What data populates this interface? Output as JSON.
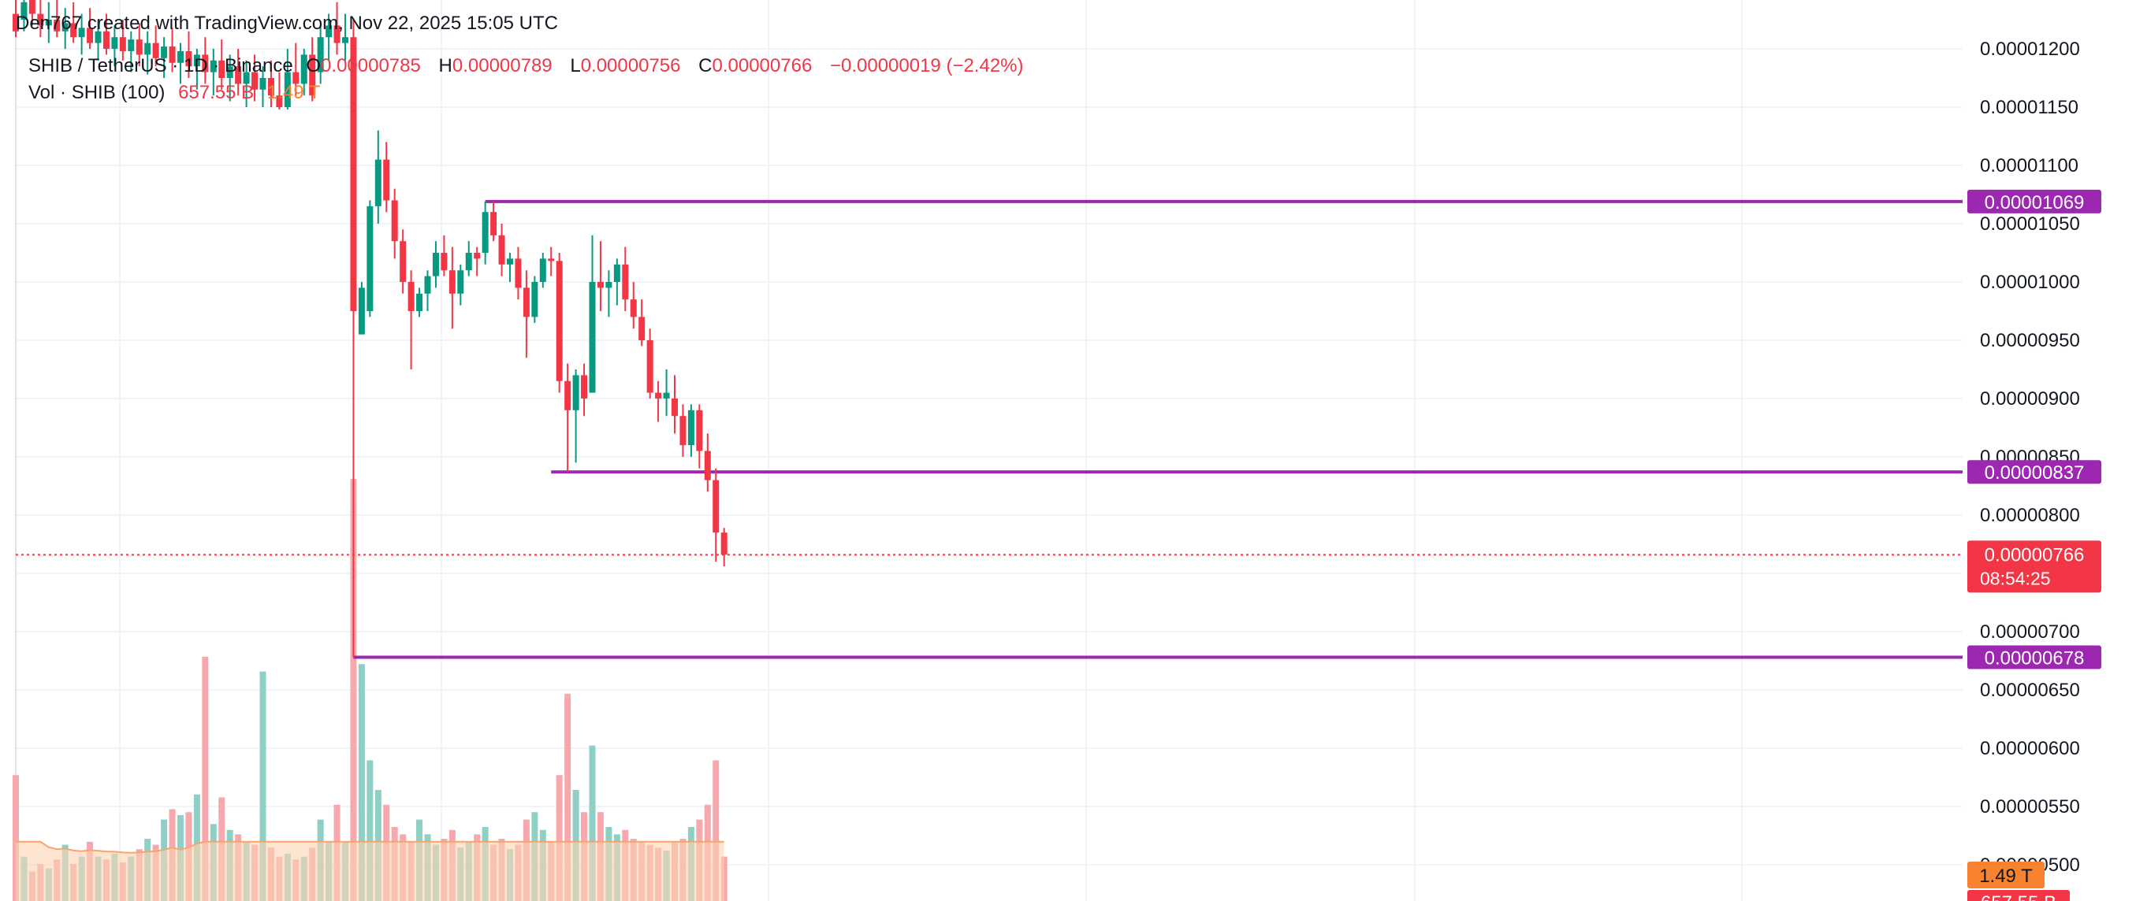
{
  "header": {
    "credit": "Den767 created with TradingView.com, Nov 22, 2025 15:05 UTC"
  },
  "legend": {
    "symbol": "SHIB / TetherUS · 1D · Binance",
    "open_label": "O",
    "open_value": "0.00000785",
    "high_label": "H",
    "high_value": "0.00000789",
    "low_label": "L",
    "low_value": "0.00000756",
    "close_label": "C",
    "close_value": "0.00000766",
    "change": "−0.00000019 (−2.42%)",
    "volume_title": "Vol · SHIB (100)",
    "volume_value": "657.55 B",
    "volume_ma_value": "1.49 T"
  },
  "colors": {
    "up": "#089981",
    "down": "#f23645",
    "level_line": "#9c27b0",
    "volume_up": "#8fcfc5",
    "volume_down": "#f6a8ad",
    "volume_ma_fill": "#fcd3b3",
    "volume_ma_line": "#f7a56b",
    "grid": "#f0f3fa"
  },
  "chart_data": {
    "type": "candlestick",
    "symbol": "SHIB / TetherUS",
    "interval": "1D",
    "exchange": "Binance",
    "y_axis_ticks": [
      "0.00001200",
      "0.00001150",
      "0.00001100",
      "0.00001050",
      "0.00001000",
      "0.00000950",
      "0.00000900",
      "0.00000850",
      "0.00000800",
      "0.00000700",
      "0.00000650",
      "0.00000600",
      "0.00000550",
      "0.00000500"
    ],
    "ylim": [
      4.9e-06,
      1.21e-05
    ],
    "grid": true,
    "horizontal_levels": [
      "0.00001069",
      "0.00000837",
      "0.00000678"
    ],
    "last_price": "0.00000766",
    "countdown": "08:54:25",
    "volume_badges": [
      "1.49 T",
      "657.55 B"
    ],
    "candles": [
      {
        "o": 1.23e-05,
        "h": 1.27e-05,
        "l": 1.21e-05,
        "c": 1.215e-05,
        "v": 85
      },
      {
        "o": 1.225e-05,
        "h": 1.26e-05,
        "l": 1.215e-05,
        "c": 1.24e-05,
        "v": 30
      },
      {
        "o": 1.245e-05,
        "h": 1.27e-05,
        "l": 1.22e-05,
        "c": 1.23e-05,
        "v": 20
      },
      {
        "o": 1.23e-05,
        "h": 1.25e-05,
        "l": 1.21e-05,
        "c": 1.22e-05,
        "v": 25
      },
      {
        "o": 1.22e-05,
        "h": 1.24e-05,
        "l": 1.205e-05,
        "c": 1.225e-05,
        "v": 22
      },
      {
        "o": 1.225e-05,
        "h": 1.245e-05,
        "l": 1.21e-05,
        "c": 1.215e-05,
        "v": 28
      },
      {
        "o": 1.215e-05,
        "h": 1.235e-05,
        "l": 1.2e-05,
        "c": 1.222e-05,
        "v": 38
      },
      {
        "o": 1.222e-05,
        "h": 1.24e-05,
        "l": 1.205e-05,
        "c": 1.21e-05,
        "v": 25
      },
      {
        "o": 1.21e-05,
        "h": 1.23e-05,
        "l": 1.195e-05,
        "c": 1.218e-05,
        "v": 30
      },
      {
        "o": 1.218e-05,
        "h": 1.235e-05,
        "l": 1.2e-05,
        "c": 1.205e-05,
        "v": 40
      },
      {
        "o": 1.205e-05,
        "h": 1.225e-05,
        "l": 1.19e-05,
        "c": 1.215e-05,
        "v": 30
      },
      {
        "o": 1.215e-05,
        "h": 1.23e-05,
        "l": 1.195e-05,
        "c": 1.2e-05,
        "v": 28
      },
      {
        "o": 1.2e-05,
        "h": 1.22e-05,
        "l": 1.185e-05,
        "c": 1.21e-05,
        "v": 32
      },
      {
        "o": 1.21e-05,
        "h": 1.225e-05,
        "l": 1.19e-05,
        "c": 1.198e-05,
        "v": 26
      },
      {
        "o": 1.198e-05,
        "h": 1.215e-05,
        "l": 1.18e-05,
        "c": 1.208e-05,
        "v": 30
      },
      {
        "o": 1.208e-05,
        "h": 1.222e-05,
        "l": 1.185e-05,
        "c": 1.195e-05,
        "v": 35
      },
      {
        "o": 1.195e-05,
        "h": 1.215e-05,
        "l": 1.178e-05,
        "c": 1.205e-05,
        "v": 42
      },
      {
        "o": 1.205e-05,
        "h": 1.22e-05,
        "l": 1.185e-05,
        "c": 1.192e-05,
        "v": 38
      },
      {
        "o": 1.192e-05,
        "h": 1.21e-05,
        "l": 1.175e-05,
        "c": 1.202e-05,
        "v": 55
      },
      {
        "o": 1.202e-05,
        "h": 1.218e-05,
        "l": 1.18e-05,
        "c": 1.188e-05,
        "v": 62
      },
      {
        "o": 1.188e-05,
        "h": 1.205e-05,
        "l": 1.17e-05,
        "c": 1.198e-05,
        "v": 58
      },
      {
        "o": 1.198e-05,
        "h": 1.215e-05,
        "l": 1.175e-05,
        "c": 1.185e-05,
        "v": 60
      },
      {
        "o": 1.185e-05,
        "h": 1.2e-05,
        "l": 1.165e-05,
        "c": 1.195e-05,
        "v": 72
      },
      {
        "o": 1.195e-05,
        "h": 1.21e-05,
        "l": 1.17e-05,
        "c": 1.18e-05,
        "v": 165
      },
      {
        "o": 1.18e-05,
        "h": 1.2e-05,
        "l": 1.16e-05,
        "c": 1.19e-05,
        "v": 52
      },
      {
        "o": 1.19e-05,
        "h": 1.208e-05,
        "l": 1.165e-05,
        "c": 1.175e-05,
        "v": 70
      },
      {
        "o": 1.175e-05,
        "h": 1.195e-05,
        "l": 1.155e-05,
        "c": 1.185e-05,
        "v": 48
      },
      {
        "o": 1.185e-05,
        "h": 1.2e-05,
        "l": 1.16e-05,
        "c": 1.17e-05,
        "v": 45
      },
      {
        "o": 1.17e-05,
        "h": 1.19e-05,
        "l": 1.15e-05,
        "c": 1.18e-05,
        "v": 40
      },
      {
        "o": 1.18e-05,
        "h": 1.195e-05,
        "l": 1.155e-05,
        "c": 1.165e-05,
        "v": 38
      },
      {
        "o": 1.165e-05,
        "h": 1.185e-05,
        "l": 1.15e-05,
        "c": 1.175e-05,
        "v": 155
      },
      {
        "o": 1.175e-05,
        "h": 1.19e-05,
        "l": 1.15e-05,
        "c": 1.16e-05,
        "v": 36
      },
      {
        "o": 1.16e-05,
        "h": 1.18e-05,
        "l": 1.148e-05,
        "c": 1.15e-05,
        "v": 30
      },
      {
        "o": 1.15e-05,
        "h": 1.2e-05,
        "l": 1.148e-05,
        "c": 1.18e-05,
        "v": 32
      },
      {
        "o": 1.18e-05,
        "h": 1.205e-05,
        "l": 1.16e-05,
        "c": 1.17e-05,
        "v": 28
      },
      {
        "o": 1.17e-05,
        "h": 1.2e-05,
        "l": 1.16e-05,
        "c": 1.195e-05,
        "v": 30
      },
      {
        "o": 1.195e-05,
        "h": 1.21e-05,
        "l": 1.155e-05,
        "c": 1.16e-05,
        "v": 36
      },
      {
        "o": 1.18e-05,
        "h": 1.22e-05,
        "l": 1.17e-05,
        "c": 1.21e-05,
        "v": 55
      },
      {
        "o": 1.21e-05,
        "h": 1.23e-05,
        "l": 1.19e-05,
        "c": 1.22e-05,
        "v": 40
      },
      {
        "o": 1.22e-05,
        "h": 1.24e-05,
        "l": 1.195e-05,
        "c": 1.205e-05,
        "v": 65
      },
      {
        "o": 1.205e-05,
        "h": 1.23e-05,
        "l": 1.19e-05,
        "c": 1.21e-05,
        "v": 40
      },
      {
        "o": 1.21e-05,
        "h": 1.225e-05,
        "l": 6.78e-06,
        "c": 9.75e-06,
        "v": 285
      },
      {
        "o": 9.55e-06,
        "h": 1e-05,
        "l": 9.55e-06,
        "c": 9.95e-06,
        "v": 160
      },
      {
        "o": 9.75e-06,
        "h": 1.07e-05,
        "l": 9.7e-06,
        "c": 1.065e-05,
        "v": 95
      },
      {
        "o": 1.065e-05,
        "h": 1.13e-05,
        "l": 1.05e-05,
        "c": 1.105e-05,
        "v": 75
      },
      {
        "o": 1.105e-05,
        "h": 1.12e-05,
        "l": 1.06e-05,
        "c": 1.07e-05,
        "v": 65
      },
      {
        "o": 1.07e-05,
        "h": 1.08e-05,
        "l": 1.02e-05,
        "c": 1.035e-05,
        "v": 50
      },
      {
        "o": 1.035e-05,
        "h": 1.045e-05,
        "l": 9.9e-06,
        "c": 1e-05,
        "v": 45
      },
      {
        "o": 1e-05,
        "h": 1.01e-05,
        "l": 9.25e-06,
        "c": 9.75e-06,
        "v": 40
      },
      {
        "o": 9.75e-06,
        "h": 9.95e-06,
        "l": 9.7e-06,
        "c": 9.9e-06,
        "v": 55
      },
      {
        "o": 9.9e-06,
        "h": 1.01e-05,
        "l": 9.75e-06,
        "c": 1.005e-05,
        "v": 45
      },
      {
        "o": 1.005e-05,
        "h": 1.035e-05,
        "l": 9.95e-06,
        "c": 1.025e-05,
        "v": 38
      },
      {
        "o": 1.025e-05,
        "h": 1.04e-05,
        "l": 1.005e-05,
        "c": 1.01e-05,
        "v": 42
      },
      {
        "o": 1.01e-05,
        "h": 1.03e-05,
        "l": 9.6e-06,
        "c": 9.9e-06,
        "v": 48
      },
      {
        "o": 9.9e-06,
        "h": 1.015e-05,
        "l": 9.8e-06,
        "c": 1.01e-05,
        "v": 36
      },
      {
        "o": 1.01e-05,
        "h": 1.035e-05,
        "l": 1.005e-05,
        "c": 1.025e-05,
        "v": 40
      },
      {
        "o": 1.025e-05,
        "h": 1.03e-05,
        "l": 1.005e-05,
        "c": 1.02e-05,
        "v": 45
      },
      {
        "o": 1.025e-05,
        "h": 1.069e-05,
        "l": 1.015e-05,
        "c": 1.06e-05,
        "v": 50
      },
      {
        "o": 1.06e-05,
        "h": 1.069e-05,
        "l": 1.035e-05,
        "c": 1.04e-05,
        "v": 38
      },
      {
        "o": 1.04e-05,
        "h": 1.05e-05,
        "l": 1.005e-05,
        "c": 1.015e-05,
        "v": 42
      },
      {
        "o": 1.015e-05,
        "h": 1.025e-05,
        "l": 1e-05,
        "c": 1.02e-05,
        "v": 35
      },
      {
        "o": 1.02e-05,
        "h": 1.03e-05,
        "l": 9.85e-06,
        "c": 9.95e-06,
        "v": 38
      },
      {
        "o": 9.95e-06,
        "h": 1.01e-05,
        "l": 9.35e-06,
        "c": 9.7e-06,
        "v": 55
      },
      {
        "o": 9.7e-06,
        "h": 1.005e-05,
        "l": 9.65e-06,
        "c": 1e-05,
        "v": 60
      },
      {
        "o": 1e-05,
        "h": 1.025e-05,
        "l": 9.95e-06,
        "c": 1.02e-05,
        "v": 48
      },
      {
        "o": 1.02e-05,
        "h": 1.03e-05,
        "l": 1.005e-05,
        "c": 1.018e-05,
        "v": 40
      },
      {
        "o": 1.018e-05,
        "h": 1.025e-05,
        "l": 9.05e-06,
        "c": 9.15e-06,
        "v": 85
      },
      {
        "o": 9.15e-06,
        "h": 9.3e-06,
        "l": 8.37e-06,
        "c": 8.9e-06,
        "v": 140
      },
      {
        "o": 8.9e-06,
        "h": 9.25e-06,
        "l": 8.45e-06,
        "c": 9.2e-06,
        "v": 75
      },
      {
        "o": 9.2e-06,
        "h": 9.3e-06,
        "l": 8.85e-06,
        "c": 9e-06,
        "v": 60
      },
      {
        "o": 9.05e-06,
        "h": 1.04e-05,
        "l": 9.05e-06,
        "c": 1e-05,
        "v": 105
      },
      {
        "o": 1e-05,
        "h": 1.035e-05,
        "l": 9.75e-06,
        "c": 9.95e-06,
        "v": 60
      },
      {
        "o": 9.95e-06,
        "h": 1.01e-05,
        "l": 9.7e-06,
        "c": 1e-05,
        "v": 50
      },
      {
        "o": 1e-05,
        "h": 1.02e-05,
        "l": 9.8e-06,
        "c": 1.015e-05,
        "v": 45
      },
      {
        "o": 1.015e-05,
        "h": 1.03e-05,
        "l": 9.75e-06,
        "c": 9.85e-06,
        "v": 48
      },
      {
        "o": 9.85e-06,
        "h": 1e-05,
        "l": 9.6e-06,
        "c": 9.7e-06,
        "v": 42
      },
      {
        "o": 9.7e-06,
        "h": 9.85e-06,
        "l": 9.45e-06,
        "c": 9.5e-06,
        "v": 40
      },
      {
        "o": 9.5e-06,
        "h": 9.6e-06,
        "l": 9e-06,
        "c": 9.05e-06,
        "v": 38
      },
      {
        "o": 9.05e-06,
        "h": 9.15e-06,
        "l": 8.8e-06,
        "c": 9e-06,
        "v": 36
      },
      {
        "o": 9e-06,
        "h": 9.25e-06,
        "l": 8.85e-06,
        "c": 9.05e-06,
        "v": 34
      },
      {
        "o": 9e-06,
        "h": 9.2e-06,
        "l": 8.7e-06,
        "c": 8.85e-06,
        "v": 40
      },
      {
        "o": 8.85e-06,
        "h": 8.95e-06,
        "l": 8.5e-06,
        "c": 8.6e-06,
        "v": 42
      },
      {
        "o": 8.6e-06,
        "h": 8.95e-06,
        "l": 8.5e-06,
        "c": 8.9e-06,
        "v": 50
      },
      {
        "o": 8.9e-06,
        "h": 8.95e-06,
        "l": 8.4e-06,
        "c": 8.55e-06,
        "v": 55
      },
      {
        "o": 8.55e-06,
        "h": 8.7e-06,
        "l": 8.2e-06,
        "c": 8.3e-06,
        "v": 65
      },
      {
        "o": 8.3e-06,
        "h": 8.4e-06,
        "l": 7.6e-06,
        "c": 7.85e-06,
        "v": 95
      },
      {
        "o": 7.85e-06,
        "h": 7.89e-06,
        "l": 7.56e-06,
        "c": 7.66e-06,
        "v": 30
      }
    ]
  }
}
